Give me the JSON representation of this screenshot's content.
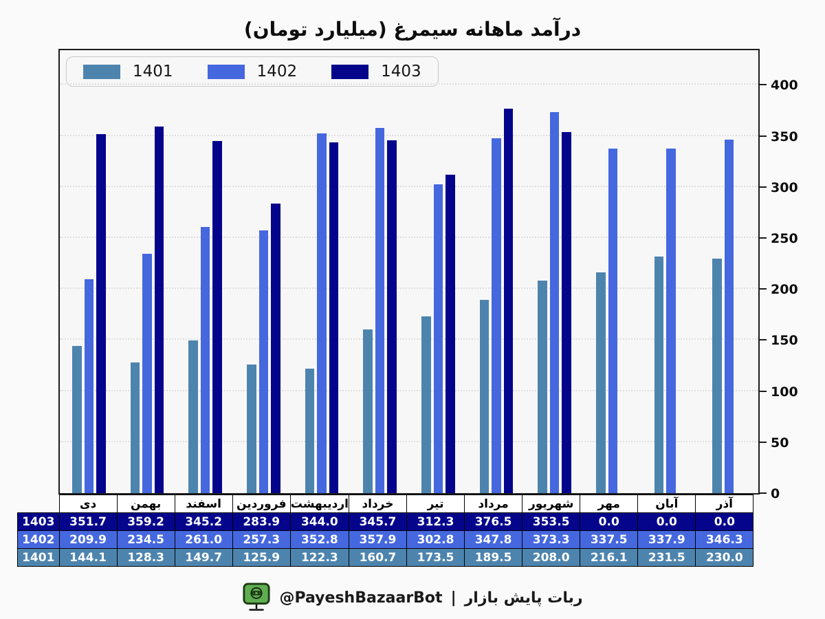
{
  "title": "درآمد ماهانه سیمرغ (میلیارد تومان)",
  "colors": {
    "page_bg": "#fbfafa",
    "plot_bg": "#f8f7f7",
    "plot_border": "#1b1b1b",
    "grid": "#e0dede",
    "s1401": "#4d84ae",
    "s1402": "#4568df",
    "s1403": "#05058c"
  },
  "chart_data": {
    "type": "bar",
    "title": "درآمد ماهانه سیمرغ (میلیارد تومان)",
    "categories": [
      "دی",
      "بهمن",
      "اسفند",
      "فروردین",
      "اردیبهشت",
      "خرداد",
      "تیر",
      "مرداد",
      "شهریور",
      "مهر",
      "آبان",
      "آذر"
    ],
    "series": [
      {
        "name": "1401",
        "color": "#4d84ae",
        "values": [
          144.1,
          128.3,
          149.7,
          125.9,
          122.3,
          160.7,
          173.5,
          189.5,
          208.0,
          216.1,
          231.5,
          230.0
        ]
      },
      {
        "name": "1402",
        "color": "#4568df",
        "values": [
          209.9,
          234.5,
          261.0,
          257.3,
          352.8,
          357.9,
          302.8,
          347.8,
          373.3,
          337.5,
          337.9,
          346.3
        ]
      },
      {
        "name": "1403",
        "color": "#05058c",
        "values": [
          351.7,
          359.2,
          345.2,
          283.9,
          344.0,
          345.7,
          312.3,
          376.5,
          353.5,
          0.0,
          0.0,
          0.0
        ]
      }
    ],
    "y_ticks": [
      0,
      50,
      100,
      150,
      200,
      250,
      300,
      350,
      400
    ],
    "ylim": [
      0,
      434
    ],
    "yaxis_side": "right",
    "grid": "horizontal-dotted",
    "legend_position": "top-left",
    "legend_entries": [
      "1401",
      "1402",
      "1403"
    ]
  },
  "table": {
    "row_order": [
      "1403",
      "1402",
      "1401"
    ],
    "value_decimals": 1
  },
  "footer": {
    "icon": "green-monitor-robot-icon",
    "handle": "@PayeshBazaarBot",
    "separator": "|",
    "label": "ربات پایش بازار"
  }
}
